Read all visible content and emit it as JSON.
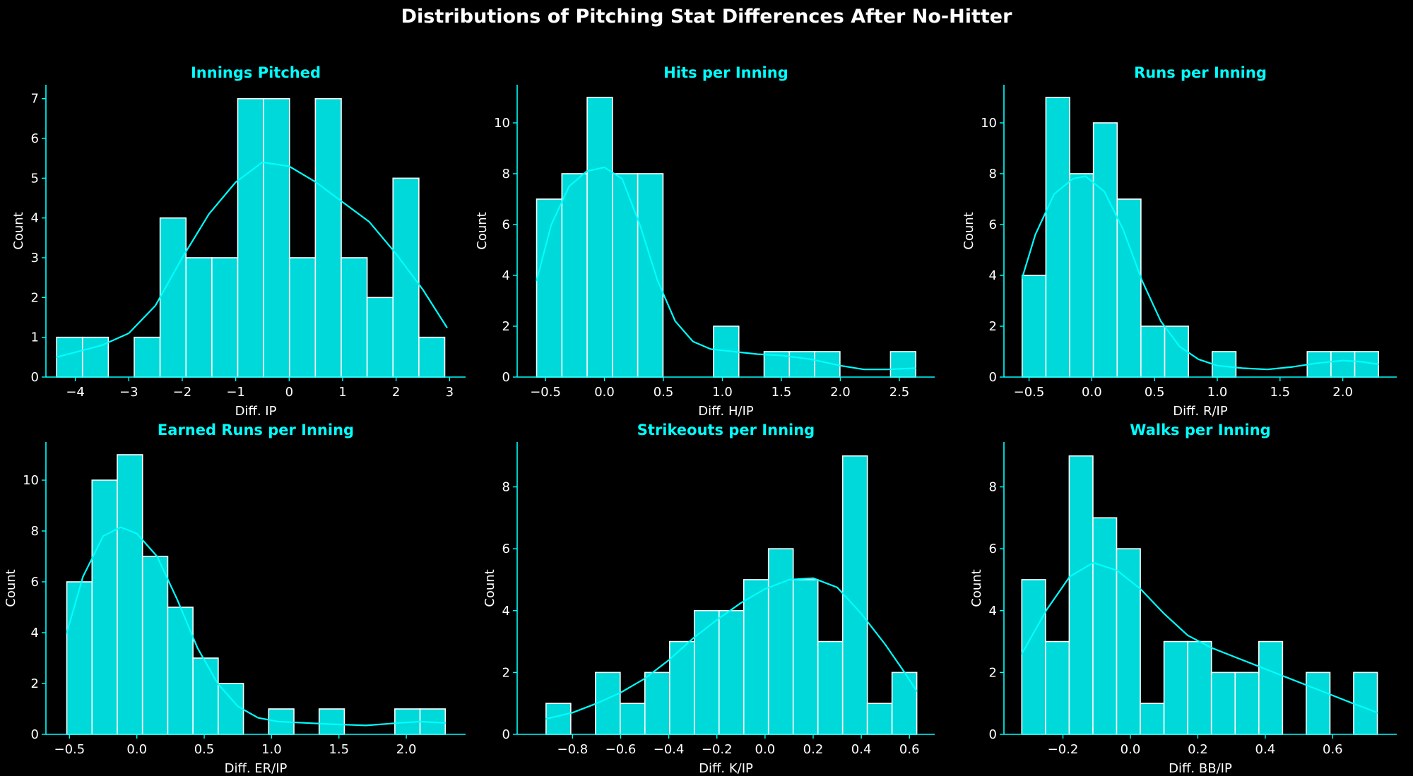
{
  "figure": {
    "title": "Distributions of Pitching Stat Differences After No-Hitter"
  },
  "colors": {
    "background": "#000000",
    "bar_fill": "#00d9d9",
    "bar_edge": "#ffffff",
    "kde_line": "#00ffff",
    "panel_title": "#00ffff",
    "axis": "#00ffff",
    "text": "#ffffff"
  },
  "chart_data": [
    {
      "type": "bar",
      "subtype": "histogram",
      "title": "Innings Pitched",
      "xlabel": "Diff. IP",
      "ylabel": "Count",
      "bin_start": -4.35,
      "bin_width": 0.484,
      "counts": [
        1,
        1,
        0,
        1,
        4,
        3,
        3,
        7,
        7,
        3,
        7,
        3,
        2,
        5,
        1
      ],
      "kde": [
        [
          -4.35,
          0.5
        ],
        [
          -3.5,
          0.8
        ],
        [
          -3.0,
          1.1
        ],
        [
          -2.5,
          1.8
        ],
        [
          -2.0,
          3.0
        ],
        [
          -1.5,
          4.1
        ],
        [
          -1.0,
          4.9
        ],
        [
          -0.5,
          5.4
        ],
        [
          0.0,
          5.3
        ],
        [
          0.5,
          4.9
        ],
        [
          1.0,
          4.4
        ],
        [
          1.5,
          3.9
        ],
        [
          2.0,
          3.1
        ],
        [
          2.5,
          2.2
        ],
        [
          2.95,
          1.25
        ]
      ],
      "xlim": [
        -4.55,
        3.3
      ],
      "ylim": [
        0,
        7.35
      ],
      "xticks": [
        -4,
        -3,
        -2,
        -1,
        0,
        1,
        2,
        3
      ],
      "xtick_labels": [
        "−4",
        "−3",
        "−2",
        "−1",
        "0",
        "1",
        "2",
        "3"
      ],
      "yticks": [
        0,
        1,
        2,
        3,
        4,
        5,
        6,
        7
      ],
      "ytick_labels": [
        "0",
        "1",
        "2",
        "3",
        "4",
        "5",
        "6",
        "7"
      ],
      "grid": false
    },
    {
      "type": "bar",
      "subtype": "histogram",
      "title": "Hits per Inning",
      "xlabel": "Diff. H/IP",
      "ylabel": "Count",
      "bin_start": -0.575,
      "bin_width": 0.2143,
      "counts": [
        7,
        8,
        11,
        8,
        8,
        0,
        0,
        2,
        0,
        1,
        1,
        1,
        0,
        0,
        1
      ],
      "kde": [
        [
          -0.575,
          3.8
        ],
        [
          -0.45,
          6.0
        ],
        [
          -0.3,
          7.5
        ],
        [
          -0.15,
          8.1
        ],
        [
          0.0,
          8.25
        ],
        [
          0.15,
          7.8
        ],
        [
          0.3,
          6.0
        ],
        [
          0.45,
          3.8
        ],
        [
          0.6,
          2.2
        ],
        [
          0.75,
          1.4
        ],
        [
          0.9,
          1.1
        ],
        [
          1.1,
          1.0
        ],
        [
          1.3,
          0.9
        ],
        [
          1.5,
          0.85
        ],
        [
          1.75,
          0.7
        ],
        [
          2.0,
          0.45
        ],
        [
          2.2,
          0.3
        ],
        [
          2.4,
          0.3
        ],
        [
          2.635,
          0.35
        ]
      ],
      "xlim": [
        -0.74,
        2.8
      ],
      "ylim": [
        0,
        11.5
      ],
      "xticks": [
        -0.5,
        0.0,
        0.5,
        1.0,
        1.5,
        2.0,
        2.5
      ],
      "xtick_labels": [
        "−0.5",
        "0.0",
        "0.5",
        "1.0",
        "1.5",
        "2.0",
        "2.5"
      ],
      "yticks": [
        0,
        2,
        4,
        6,
        8,
        10
      ],
      "ytick_labels": [
        "0",
        "2",
        "4",
        "6",
        "8",
        "10"
      ],
      "grid": false
    },
    {
      "type": "bar",
      "subtype": "histogram",
      "title": "Runs per Inning",
      "xlabel": "Diff. R/IP",
      "ylabel": "Count",
      "bin_start": -0.555,
      "bin_width": 0.1893,
      "counts": [
        4,
        11,
        8,
        10,
        7,
        2,
        2,
        0,
        1,
        0,
        0,
        0,
        1,
        1,
        1
      ],
      "kde": [
        [
          -0.555,
          3.9
        ],
        [
          -0.45,
          5.6
        ],
        [
          -0.3,
          7.2
        ],
        [
          -0.15,
          7.8
        ],
        [
          -0.05,
          7.9
        ],
        [
          0.1,
          7.3
        ],
        [
          0.25,
          5.8
        ],
        [
          0.4,
          3.8
        ],
        [
          0.55,
          2.2
        ],
        [
          0.7,
          1.2
        ],
        [
          0.85,
          0.7
        ],
        [
          1.0,
          0.45
        ],
        [
          1.2,
          0.35
        ],
        [
          1.4,
          0.3
        ],
        [
          1.6,
          0.4
        ],
        [
          1.8,
          0.55
        ],
        [
          2.0,
          0.65
        ],
        [
          2.15,
          0.6
        ],
        [
          2.284,
          0.5
        ]
      ],
      "xlim": [
        -0.7,
        2.43
      ],
      "ylim": [
        0,
        11.5
      ],
      "xticks": [
        -0.5,
        0.0,
        0.5,
        1.0,
        1.5,
        2.0
      ],
      "xtick_labels": [
        "−0.5",
        "0.0",
        "0.5",
        "1.0",
        "1.5",
        "2.0"
      ],
      "yticks": [
        0,
        2,
        4,
        6,
        8,
        10
      ],
      "ytick_labels": [
        "0",
        "2",
        "4",
        "6",
        "8",
        "10"
      ],
      "grid": false
    },
    {
      "type": "bar",
      "subtype": "histogram",
      "title": "Earned Runs per Inning",
      "xlabel": "Diff. ER/IP",
      "ylabel": "Count",
      "bin_start": -0.52,
      "bin_width": 0.1873,
      "counts": [
        6,
        10,
        11,
        7,
        5,
        3,
        2,
        0,
        1,
        0,
        1,
        0,
        0,
        1,
        1
      ],
      "kde": [
        [
          -0.52,
          4.0
        ],
        [
          -0.4,
          6.2
        ],
        [
          -0.25,
          7.8
        ],
        [
          -0.12,
          8.15
        ],
        [
          0.0,
          7.9
        ],
        [
          0.15,
          7.0
        ],
        [
          0.3,
          5.3
        ],
        [
          0.45,
          3.4
        ],
        [
          0.6,
          2.0
        ],
        [
          0.75,
          1.1
        ],
        [
          0.9,
          0.65
        ],
        [
          1.05,
          0.5
        ],
        [
          1.25,
          0.45
        ],
        [
          1.45,
          0.4
        ],
        [
          1.7,
          0.35
        ],
        [
          1.95,
          0.45
        ],
        [
          2.1,
          0.5
        ],
        [
          2.29,
          0.45
        ]
      ],
      "xlim": [
        -0.675,
        2.44
      ],
      "ylim": [
        0,
        11.5
      ],
      "xticks": [
        -0.5,
        0.0,
        0.5,
        1.0,
        1.5,
        2.0
      ],
      "xtick_labels": [
        "−0.5",
        "0.0",
        "0.5",
        "1.0",
        "1.5",
        "2.0"
      ],
      "yticks": [
        0,
        2,
        4,
        6,
        8,
        10
      ],
      "ytick_labels": [
        "0",
        "2",
        "4",
        "6",
        "8",
        "10"
      ],
      "grid": false
    },
    {
      "type": "bar",
      "subtype": "histogram",
      "title": "Strikeouts per Inning",
      "xlabel": "Diff. K/IP",
      "ylabel": "Count",
      "bin_start": -0.91,
      "bin_width": 0.1027,
      "counts": [
        1,
        0,
        2,
        1,
        2,
        3,
        4,
        4,
        5,
        6,
        5,
        3,
        9,
        1,
        2
      ],
      "kde": [
        [
          -0.91,
          0.5
        ],
        [
          -0.8,
          0.7
        ],
        [
          -0.7,
          1.0
        ],
        [
          -0.6,
          1.35
        ],
        [
          -0.5,
          1.8
        ],
        [
          -0.4,
          2.4
        ],
        [
          -0.3,
          3.1
        ],
        [
          -0.2,
          3.7
        ],
        [
          -0.1,
          4.25
        ],
        [
          0.0,
          4.7
        ],
        [
          0.1,
          5.0
        ],
        [
          0.2,
          5.05
        ],
        [
          0.3,
          4.75
        ],
        [
          0.4,
          3.9
        ],
        [
          0.5,
          2.9
        ],
        [
          0.58,
          2.0
        ],
        [
          0.63,
          1.4
        ]
      ],
      "xlim": [
        -1.03,
        0.705
      ],
      "ylim": [
        0,
        9.45
      ],
      "xticks": [
        -0.8,
        -0.6,
        -0.4,
        -0.2,
        0.0,
        0.2,
        0.4,
        0.6
      ],
      "xtick_labels": [
        "−0.8",
        "−0.6",
        "−0.4",
        "−0.2",
        "0.0",
        "0.2",
        "0.4",
        "0.6"
      ],
      "yticks": [
        0,
        2,
        4,
        6,
        8
      ],
      "ytick_labels": [
        "0",
        "2",
        "4",
        "6",
        "8"
      ],
      "grid": false
    },
    {
      "type": "bar",
      "subtype": "histogram",
      "title": "Walks per Inning",
      "xlabel": "Diff. BB/IP",
      "ylabel": "Count",
      "bin_start": -0.322,
      "bin_width": 0.0703,
      "counts": [
        5,
        3,
        9,
        7,
        6,
        1,
        3,
        3,
        2,
        2,
        3,
        0,
        2,
        0,
        2
      ],
      "kde": [
        [
          -0.322,
          2.6
        ],
        [
          -0.25,
          4.0
        ],
        [
          -0.18,
          5.1
        ],
        [
          -0.11,
          5.55
        ],
        [
          -0.04,
          5.3
        ],
        [
          0.03,
          4.7
        ],
        [
          0.1,
          3.9
        ],
        [
          0.17,
          3.2
        ],
        [
          0.24,
          2.8
        ],
        [
          0.31,
          2.5
        ],
        [
          0.38,
          2.2
        ],
        [
          0.45,
          1.9
        ],
        [
          0.52,
          1.6
        ],
        [
          0.59,
          1.3
        ],
        [
          0.66,
          1.0
        ],
        [
          0.733,
          0.7
        ]
      ],
      "xlim": [
        -0.375,
        0.79
      ],
      "ylim": [
        0,
        9.45
      ],
      "xticks": [
        -0.2,
        0.0,
        0.2,
        0.4,
        0.6
      ],
      "xtick_labels": [
        "−0.2",
        "0.0",
        "0.2",
        "0.4",
        "0.6"
      ],
      "yticks": [
        0,
        2,
        4,
        6,
        8
      ],
      "ytick_labels": [
        "0",
        "2",
        "4",
        "6",
        "8"
      ],
      "grid": false
    }
  ]
}
